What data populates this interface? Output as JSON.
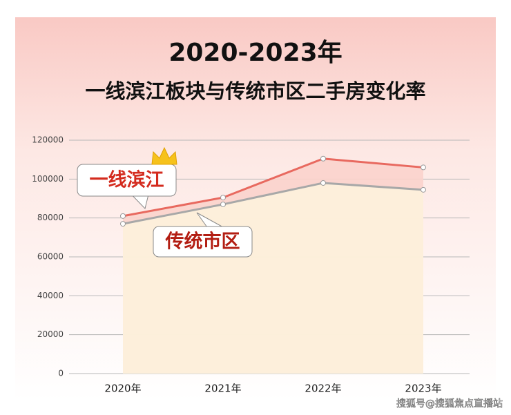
{
  "chart_data": {
    "type": "line",
    "title": "2020-2023年",
    "subtitle": "一线滨江板块与传统市区二手房变化率",
    "categories": [
      "2020年",
      "2021年",
      "2022年",
      "2023年"
    ],
    "series": [
      {
        "name": "一线滨江",
        "color": "#e8695f",
        "values": [
          81000,
          90500,
          110500,
          106000
        ]
      },
      {
        "name": "传统市区",
        "color": "#a8a8a8",
        "values": [
          77000,
          87000,
          98000,
          94500
        ]
      }
    ],
    "ylim": [
      0,
      120000
    ],
    "yticks": [
      0,
      20000,
      40000,
      60000,
      80000,
      100000,
      120000
    ],
    "grid": true,
    "watermark": "搜狐号@搜狐焦点直播站"
  }
}
